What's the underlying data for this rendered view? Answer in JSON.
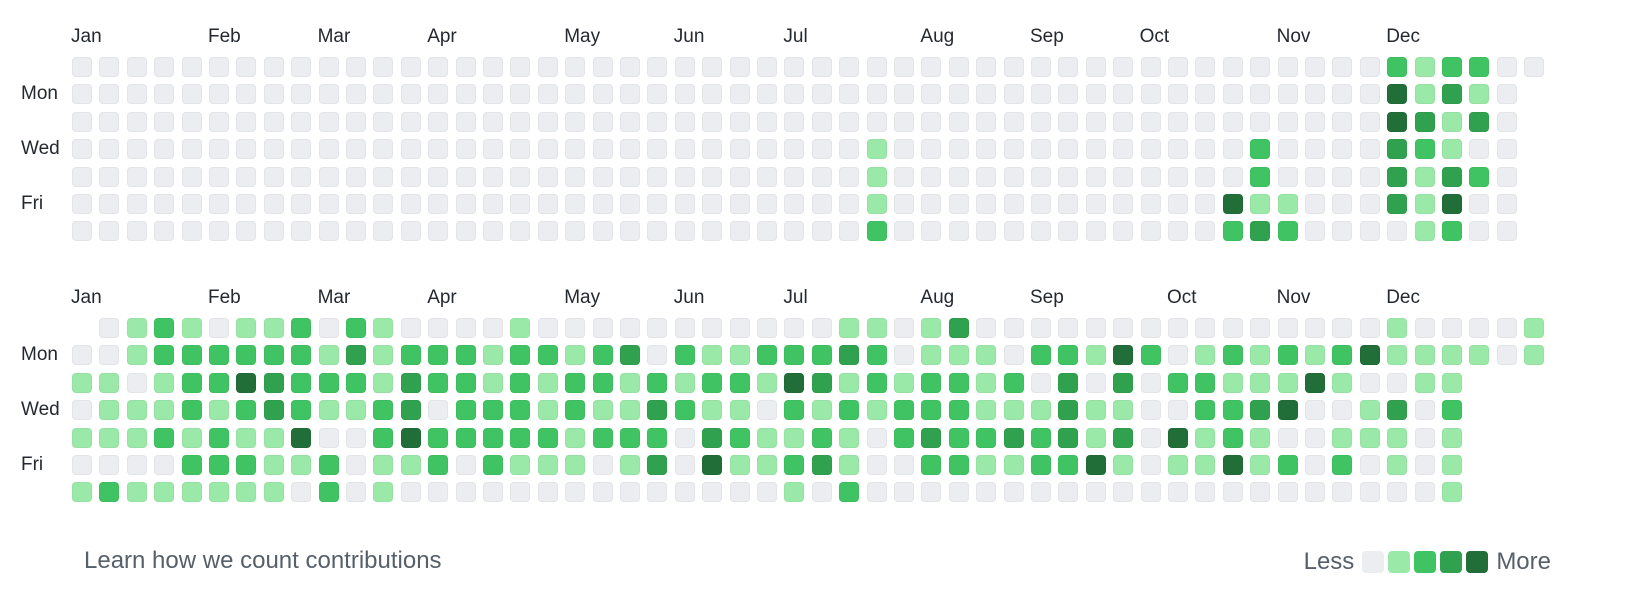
{
  "colors": {
    "level0": "#ebedf0",
    "level1": "#9be9a8",
    "level2": "#40c463",
    "level3": "#30a14e",
    "level4": "#216e39"
  },
  "graphs": [
    {
      "month_labels": [
        {
          "label": "Jan",
          "week": 0
        },
        {
          "label": "Feb",
          "week": 5
        },
        {
          "label": "Mar",
          "week": 9
        },
        {
          "label": "Apr",
          "week": 13
        },
        {
          "label": "May",
          "week": 18
        },
        {
          "label": "Jun",
          "week": 22
        },
        {
          "label": "Jul",
          "week": 26
        },
        {
          "label": "Aug",
          "week": 31
        },
        {
          "label": "Sep",
          "week": 35
        },
        {
          "label": "Oct",
          "week": 39
        },
        {
          "label": "Nov",
          "week": 44
        },
        {
          "label": "Dec",
          "week": 48
        }
      ],
      "day_labels": [
        {
          "label": "Mon",
          "row": 1
        },
        {
          "label": "Wed",
          "row": 3
        },
        {
          "label": "Fri",
          "row": 5
        }
      ],
      "contribution_levels": [
        [
          0,
          0,
          0,
          0,
          0,
          0,
          0,
          0,
          0,
          0,
          0,
          0,
          0,
          0,
          0,
          0,
          0,
          0,
          0,
          0,
          0,
          0,
          0,
          0,
          0,
          0,
          0,
          0,
          0,
          0,
          0,
          0,
          0,
          0,
          0,
          0,
          0,
          0,
          0,
          0,
          0,
          0,
          0,
          0,
          0,
          0,
          0,
          0,
          2,
          1,
          2,
          2,
          0,
          0
        ],
        [
          0,
          0,
          0,
          0,
          0,
          0,
          0,
          0,
          0,
          0,
          0,
          0,
          0,
          0,
          0,
          0,
          0,
          0,
          0,
          0,
          0,
          0,
          0,
          0,
          0,
          0,
          0,
          0,
          0,
          0,
          0,
          0,
          0,
          0,
          0,
          0,
          0,
          0,
          0,
          0,
          0,
          0,
          0,
          0,
          0,
          0,
          0,
          0,
          4,
          1,
          3,
          1,
          0,
          null
        ],
        [
          0,
          0,
          0,
          0,
          0,
          0,
          0,
          0,
          0,
          0,
          0,
          0,
          0,
          0,
          0,
          0,
          0,
          0,
          0,
          0,
          0,
          0,
          0,
          0,
          0,
          0,
          0,
          0,
          0,
          0,
          0,
          0,
          0,
          0,
          0,
          0,
          0,
          0,
          0,
          0,
          0,
          0,
          0,
          0,
          0,
          0,
          0,
          0,
          4,
          3,
          1,
          3,
          0,
          null
        ],
        [
          0,
          0,
          0,
          0,
          0,
          0,
          0,
          0,
          0,
          0,
          0,
          0,
          0,
          0,
          0,
          0,
          0,
          0,
          0,
          0,
          0,
          0,
          0,
          0,
          0,
          0,
          0,
          0,
          0,
          1,
          0,
          0,
          0,
          0,
          0,
          0,
          0,
          0,
          0,
          0,
          0,
          0,
          0,
          2,
          0,
          0,
          0,
          0,
          3,
          2,
          1,
          0,
          0,
          null
        ],
        [
          0,
          0,
          0,
          0,
          0,
          0,
          0,
          0,
          0,
          0,
          0,
          0,
          0,
          0,
          0,
          0,
          0,
          0,
          0,
          0,
          0,
          0,
          0,
          0,
          0,
          0,
          0,
          0,
          0,
          1,
          0,
          0,
          0,
          0,
          0,
          0,
          0,
          0,
          0,
          0,
          0,
          0,
          0,
          2,
          0,
          0,
          0,
          0,
          3,
          1,
          3,
          2,
          0,
          null
        ],
        [
          0,
          0,
          0,
          0,
          0,
          0,
          0,
          0,
          0,
          0,
          0,
          0,
          0,
          0,
          0,
          0,
          0,
          0,
          0,
          0,
          0,
          0,
          0,
          0,
          0,
          0,
          0,
          0,
          0,
          1,
          0,
          0,
          0,
          0,
          0,
          0,
          0,
          0,
          0,
          0,
          0,
          0,
          4,
          1,
          1,
          0,
          0,
          0,
          3,
          1,
          4,
          0,
          0,
          null
        ],
        [
          0,
          0,
          0,
          0,
          0,
          0,
          0,
          0,
          0,
          0,
          0,
          0,
          0,
          0,
          0,
          0,
          0,
          0,
          0,
          0,
          0,
          0,
          0,
          0,
          0,
          0,
          0,
          0,
          0,
          2,
          0,
          0,
          0,
          0,
          0,
          0,
          0,
          0,
          0,
          0,
          0,
          0,
          2,
          3,
          2,
          0,
          0,
          0,
          0,
          1,
          2,
          0,
          0,
          null
        ]
      ]
    },
    {
      "month_labels": [
        {
          "label": "Jan",
          "week": 0
        },
        {
          "label": "Feb",
          "week": 5
        },
        {
          "label": "Mar",
          "week": 9
        },
        {
          "label": "Apr",
          "week": 13
        },
        {
          "label": "May",
          "week": 18
        },
        {
          "label": "Jun",
          "week": 22
        },
        {
          "label": "Jul",
          "week": 26
        },
        {
          "label": "Aug",
          "week": 31
        },
        {
          "label": "Sep",
          "week": 35
        },
        {
          "label": "Oct",
          "week": 40
        },
        {
          "label": "Nov",
          "week": 44
        },
        {
          "label": "Dec",
          "week": 48
        }
      ],
      "day_labels": [
        {
          "label": "Mon",
          "row": 1
        },
        {
          "label": "Wed",
          "row": 3
        },
        {
          "label": "Fri",
          "row": 5
        }
      ],
      "contribution_levels": [
        [
          null,
          0,
          1,
          2,
          1,
          0,
          1,
          1,
          2,
          0,
          2,
          1,
          0,
          0,
          0,
          0,
          1,
          0,
          0,
          0,
          0,
          0,
          0,
          0,
          0,
          0,
          0,
          0,
          1,
          1,
          0,
          1,
          3,
          0,
          0,
          0,
          0,
          0,
          0,
          0,
          0,
          0,
          0,
          0,
          0,
          0,
          0,
          0,
          1,
          0,
          0,
          0,
          0,
          1
        ],
        [
          0,
          0,
          1,
          2,
          2,
          2,
          2,
          2,
          2,
          1,
          3,
          1,
          2,
          2,
          2,
          1,
          2,
          2,
          1,
          2,
          3,
          0,
          2,
          1,
          1,
          2,
          2,
          2,
          3,
          2,
          0,
          1,
          1,
          1,
          0,
          2,
          2,
          1,
          4,
          2,
          0,
          1,
          2,
          1,
          2,
          1,
          2,
          4,
          1,
          1,
          1,
          1,
          0,
          1
        ],
        [
          1,
          1,
          0,
          1,
          2,
          2,
          4,
          3,
          2,
          2,
          2,
          1,
          3,
          2,
          2,
          1,
          2,
          1,
          2,
          2,
          1,
          2,
          1,
          2,
          2,
          1,
          4,
          3,
          1,
          2,
          1,
          2,
          2,
          1,
          2,
          0,
          3,
          0,
          3,
          0,
          2,
          2,
          1,
          1,
          1,
          4,
          1,
          0,
          0,
          1,
          1,
          null,
          null,
          null
        ],
        [
          0,
          1,
          1,
          1,
          2,
          1,
          2,
          3,
          2,
          1,
          1,
          2,
          3,
          0,
          2,
          2,
          2,
          1,
          2,
          1,
          1,
          3,
          2,
          1,
          1,
          0,
          2,
          1,
          2,
          1,
          2,
          2,
          2,
          1,
          1,
          1,
          3,
          1,
          1,
          0,
          0,
          2,
          2,
          3,
          4,
          0,
          0,
          1,
          3,
          0,
          2,
          null,
          null,
          null
        ],
        [
          1,
          1,
          1,
          2,
          1,
          2,
          1,
          1,
          4,
          0,
          0,
          2,
          4,
          2,
          2,
          2,
          2,
          2,
          1,
          2,
          2,
          2,
          0,
          3,
          2,
          1,
          1,
          2,
          1,
          0,
          2,
          3,
          2,
          2,
          3,
          2,
          3,
          1,
          3,
          0,
          4,
          1,
          2,
          1,
          0,
          0,
          1,
          1,
          1,
          0,
          1,
          null,
          null,
          null
        ],
        [
          0,
          0,
          0,
          0,
          2,
          2,
          2,
          1,
          1,
          2,
          0,
          1,
          1,
          2,
          0,
          2,
          1,
          1,
          1,
          0,
          1,
          3,
          0,
          4,
          1,
          1,
          2,
          3,
          1,
          0,
          0,
          2,
          2,
          1,
          1,
          2,
          2,
          4,
          1,
          0,
          1,
          1,
          4,
          1,
          2,
          0,
          2,
          0,
          1,
          0,
          1,
          null,
          null,
          null
        ],
        [
          1,
          2,
          1,
          1,
          1,
          1,
          1,
          1,
          0,
          2,
          0,
          1,
          0,
          0,
          0,
          0,
          0,
          0,
          0,
          0,
          0,
          0,
          0,
          0,
          0,
          0,
          1,
          0,
          2,
          0,
          0,
          0,
          0,
          0,
          0,
          0,
          0,
          0,
          0,
          0,
          0,
          0,
          0,
          0,
          0,
          0,
          0,
          0,
          0,
          0,
          1,
          null,
          null,
          null
        ]
      ]
    }
  ],
  "footer": {
    "learn_link": "Learn how we count contributions",
    "legend_less": "Less",
    "legend_more": "More",
    "legend_levels": [
      0,
      1,
      2,
      3,
      4
    ]
  }
}
